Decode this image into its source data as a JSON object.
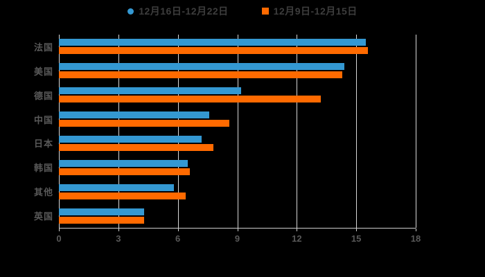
{
  "legend": {
    "items": [
      {
        "label": "12月16日-12月22日",
        "color": "#3498d2",
        "marker": "circle"
      },
      {
        "label": "12月9日-12月15日",
        "color": "#ff6a00",
        "marker": "square"
      }
    ]
  },
  "chart_data": {
    "type": "bar",
    "orientation": "horizontal",
    "title": "",
    "xlabel": "",
    "ylabel": "",
    "categories": [
      "法国",
      "美国",
      "德国",
      "中国",
      "日本",
      "韩国",
      "其他",
      "英国"
    ],
    "series": [
      {
        "name": "12月16日-12月22日",
        "color": "#3498d2",
        "values": [
          15.5,
          14.4,
          9.2,
          7.6,
          7.2,
          6.5,
          5.8,
          4.3
        ]
      },
      {
        "name": "12月9日-12月15日",
        "color": "#ff6a00",
        "values": [
          15.6,
          14.3,
          13.2,
          8.6,
          7.8,
          6.6,
          6.4,
          4.3
        ]
      }
    ],
    "xlim": [
      0,
      18
    ],
    "xticks": [
      0,
      3,
      6,
      9,
      12,
      15,
      18
    ],
    "grid": true,
    "legend_position": "top",
    "background": "#000000"
  },
  "colors": {
    "background": "#000000",
    "gridline": "#d9d9d9",
    "axis_line": "#cfcfcf",
    "tick_label": "#595959",
    "category_label": "#595959",
    "legend_text": "#3d3d3d",
    "series_blue": "#3498d2",
    "series_orange": "#ff6a00"
  }
}
